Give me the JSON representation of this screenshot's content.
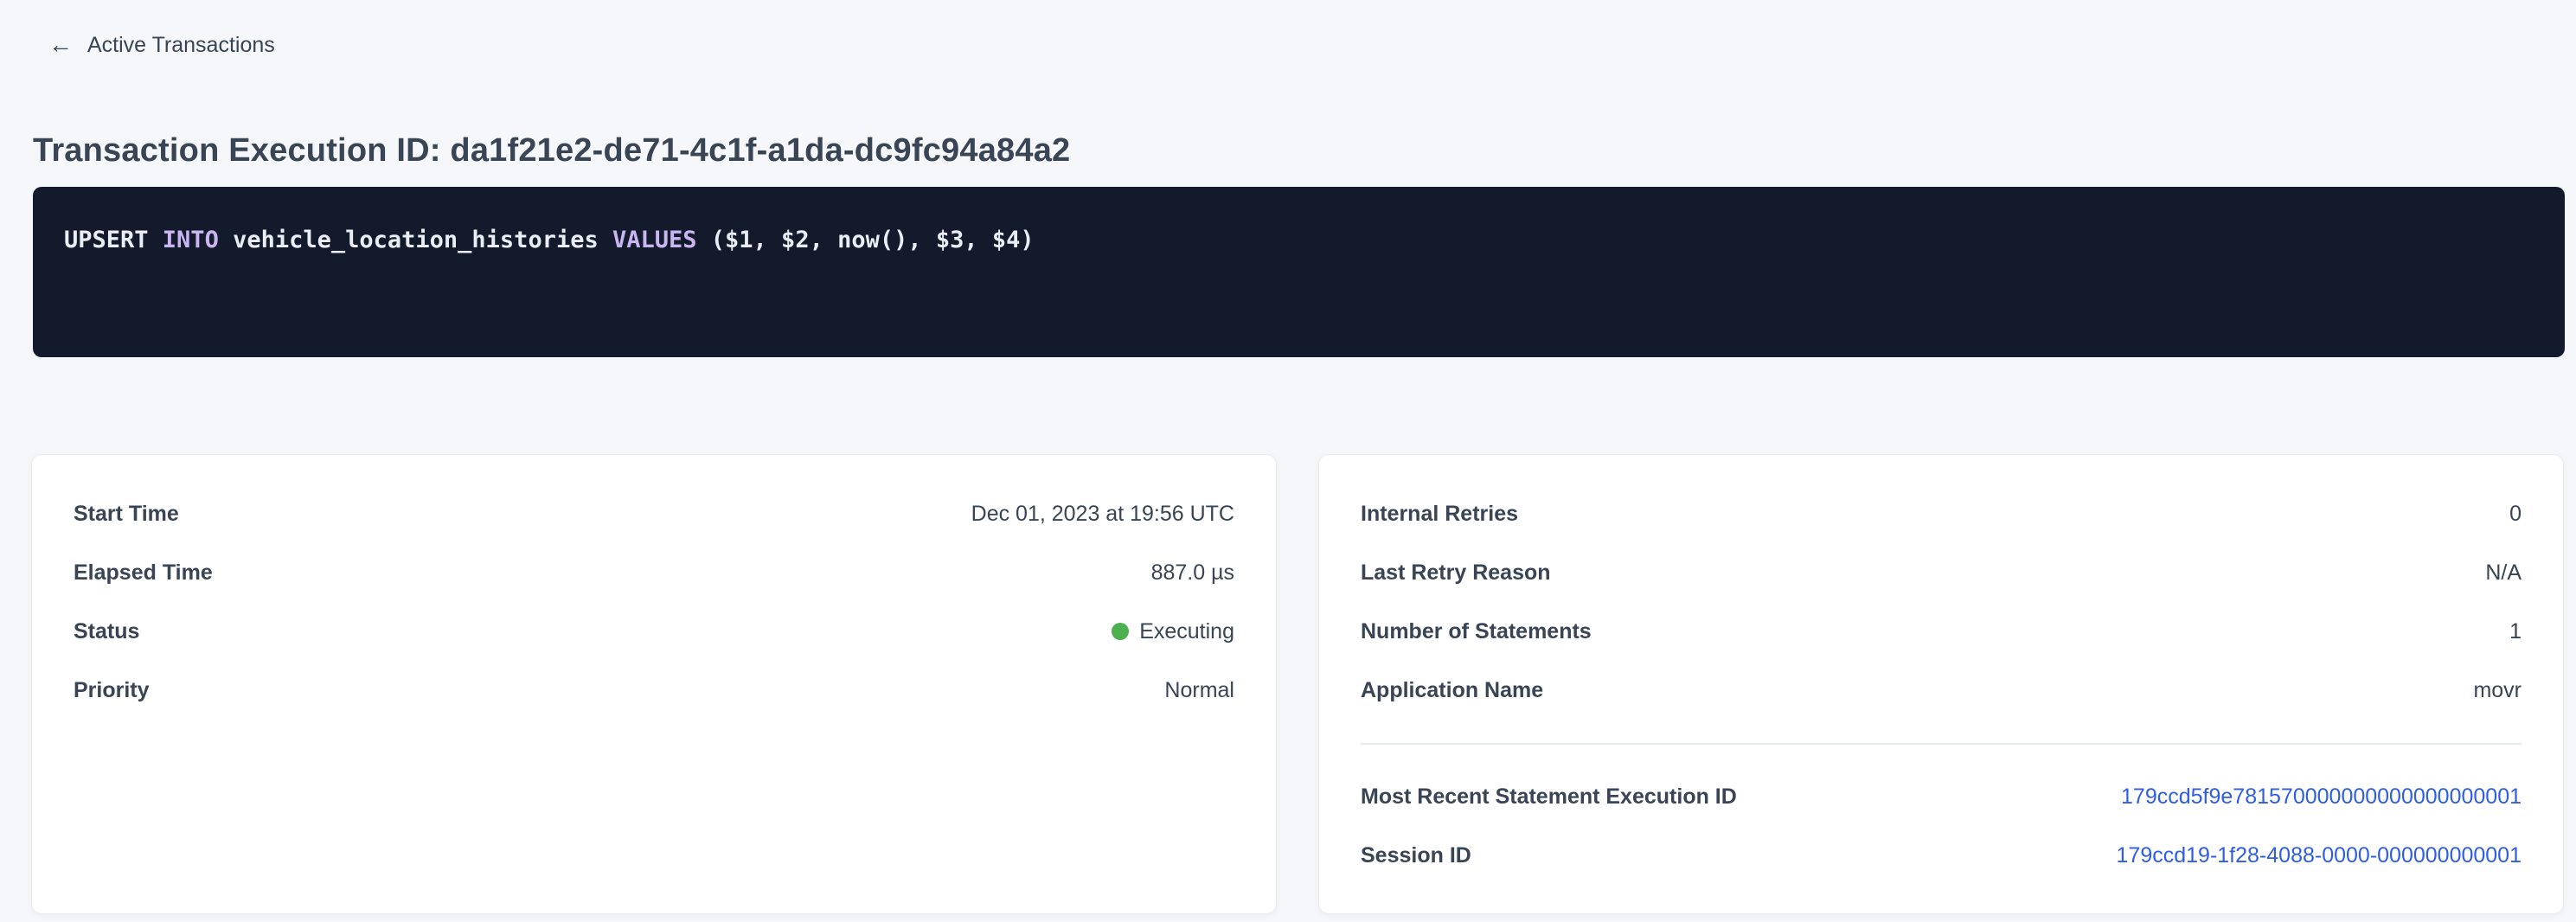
{
  "colors": {
    "page_background": "#f5f7fa",
    "text_primary": "#394455",
    "accent_link": "#2f5de8",
    "status_executing_dot": "#4caf50",
    "code_background": "#131a2c",
    "code_text": "#e9edf4",
    "code_keyword": "#c9b5f0"
  },
  "back_link": {
    "icon": "arrow-left",
    "label": "Active Transactions"
  },
  "page": {
    "title": "Transaction Execution ID: da1f21e2-de71-4c1f-a1da-dc9fc94a84a2"
  },
  "sql": {
    "t1": "UPSERT ",
    "t2": "INTO ",
    "t3": "vehicle_location_histories ",
    "t4": "VALUES ",
    "t5": "($1, $2, now(), $3, $4)"
  },
  "left_card": {
    "rows": [
      {
        "label": "Start Time",
        "value": "Dec 01, 2023 at 19:56 UTC"
      },
      {
        "label": "Elapsed Time",
        "value": "887.0 µs"
      },
      {
        "label": "Status",
        "value": "Executing"
      },
      {
        "label": "Priority",
        "value": "Normal"
      }
    ]
  },
  "right_card": {
    "rows": [
      {
        "label": "Internal Retries",
        "value": "0"
      },
      {
        "label": "Last Retry Reason",
        "value": "N/A"
      },
      {
        "label": "Number of Statements",
        "value": "1"
      },
      {
        "label": "Application Name",
        "value": "movr"
      }
    ],
    "links": [
      {
        "label": "Most Recent Statement Execution ID",
        "value": "179ccd5f9e781570000000000000000001"
      },
      {
        "label": "Session ID",
        "value": "179ccd19-1f28-4088-0000-000000000001"
      }
    ]
  }
}
